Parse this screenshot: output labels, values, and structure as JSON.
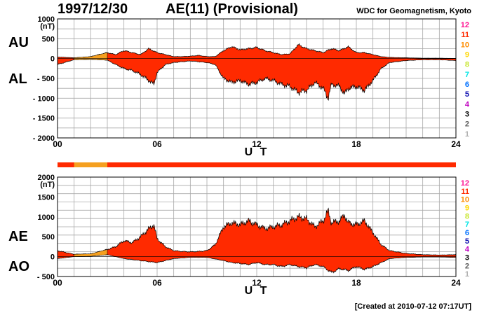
{
  "header": {
    "date": "1997/12/30",
    "title": "AE(11) (Provisional)",
    "source": "WDC for Geomagnetism, Kyoto"
  },
  "footer": {
    "created": "[Created at 2010-07-12 07:17UT]"
  },
  "colors": {
    "fill_main": "#ff2a00",
    "fill_partial": "#f5a020",
    "bar_main": "#ff2a00",
    "bar_partial": "#f5a020"
  },
  "station_scale": {
    "labels": [
      "12",
      "11",
      "10",
      "9",
      "8",
      "7",
      "6",
      "5",
      "4",
      "3",
      "2",
      "1"
    ],
    "colors": [
      "#ff1493",
      "#ff2a00",
      "#ff8c00",
      "#ffd700",
      "#c8e632",
      "#00e5e5",
      "#0070ff",
      "#1010b0",
      "#c000c0",
      "#000000",
      "#606060",
      "#b0b0b0"
    ]
  },
  "chart_data": [
    {
      "type": "area",
      "name": "AU/AL panel",
      "series_labels": [
        "AU",
        "AL"
      ],
      "y_unit": "(nT)",
      "x_label": "U T",
      "x_ticks": [
        "00",
        "06",
        "12",
        "18",
        "24"
      ],
      "xlim": [
        0,
        24
      ],
      "ylim": [
        -2000,
        1000
      ],
      "y_ticks": [
        "1000",
        "500",
        "0",
        "- 500",
        "- 1000",
        "- 1500",
        "- 2000"
      ],
      "y_tick_values": [
        1000,
        500,
        0,
        -500,
        -1000,
        -1500,
        -2000
      ],
      "grid": true,
      "partial_coverage_hours": [
        1,
        3
      ],
      "upper": {
        "name": "AU",
        "x": [
          0,
          1,
          2,
          3,
          3.5,
          4,
          4.5,
          5,
          5.5,
          6,
          6.5,
          7,
          7.5,
          8,
          8.5,
          9,
          9.5,
          10,
          10.5,
          11,
          11.5,
          12,
          12.5,
          13,
          13.5,
          14,
          14.5,
          15,
          15.5,
          16,
          16.5,
          17,
          17.5,
          18,
          18.5,
          19,
          19.5,
          20,
          21,
          22,
          23,
          24
        ],
        "y": [
          40,
          20,
          50,
          150,
          100,
          200,
          150,
          100,
          250,
          150,
          100,
          50,
          50,
          60,
          80,
          50,
          50,
          200,
          300,
          220,
          250,
          280,
          200,
          150,
          100,
          120,
          350,
          250,
          200,
          150,
          250,
          200,
          300,
          150,
          150,
          100,
          50,
          30,
          20,
          10,
          10,
          5
        ]
      },
      "lower": {
        "name": "AL",
        "x": [
          0,
          1,
          2,
          3,
          3.5,
          4,
          4.5,
          5,
          5.5,
          5.8,
          6,
          6.5,
          7,
          7.5,
          8,
          8.5,
          9,
          9.5,
          10,
          10.5,
          11,
          11.5,
          12,
          12.5,
          13,
          13.5,
          14,
          14.5,
          15,
          15.5,
          16,
          16.3,
          16.5,
          17,
          17.3,
          17.5,
          18,
          18.5,
          19,
          19.5,
          20,
          21,
          22,
          23,
          24
        ],
        "y": [
          -150,
          -30,
          -20,
          -40,
          -150,
          -250,
          -300,
          -400,
          -550,
          -650,
          -350,
          -150,
          -100,
          -80,
          -60,
          -80,
          -100,
          -150,
          -500,
          -600,
          -550,
          -650,
          -600,
          -500,
          -550,
          -650,
          -700,
          -850,
          -800,
          -600,
          -750,
          -1000,
          -650,
          -700,
          -900,
          -750,
          -700,
          -800,
          -550,
          -250,
          -100,
          -50,
          -30,
          -30,
          -50
        ]
      }
    },
    {
      "type": "area",
      "name": "AE/AO panel",
      "series_labels": [
        "AE",
        "AO"
      ],
      "y_unit": "(nT)",
      "x_label": "U T",
      "x_ticks": [
        "00",
        "06",
        "12",
        "18",
        "24"
      ],
      "xlim": [
        0,
        24
      ],
      "ylim": [
        -500,
        2000
      ],
      "y_ticks": [
        "2000",
        "1500",
        "1000",
        "500",
        "0",
        "- 500"
      ],
      "y_tick_values": [
        2000,
        1500,
        1000,
        500,
        0,
        -500
      ],
      "grid": true,
      "partial_coverage_hours": [
        1,
        3
      ],
      "upper": {
        "name": "AE",
        "x": [
          0,
          1,
          2,
          3,
          3.5,
          4,
          4.5,
          5,
          5.5,
          5.8,
          6,
          6.5,
          7,
          7.5,
          8,
          8.5,
          9,
          9.5,
          10,
          10.5,
          11,
          11.5,
          12,
          12.5,
          13,
          13.5,
          14,
          14.5,
          15,
          15.5,
          16,
          16.3,
          16.5,
          17,
          17.3,
          17.5,
          18,
          18.5,
          19,
          19.5,
          20,
          21,
          22,
          23,
          24
        ],
        "y": [
          150,
          60,
          70,
          180,
          250,
          400,
          350,
          500,
          700,
          800,
          450,
          250,
          150,
          130,
          120,
          130,
          150,
          300,
          750,
          850,
          800,
          900,
          800,
          700,
          750,
          800,
          900,
          1000,
          950,
          750,
          900,
          1150,
          850,
          900,
          1050,
          850,
          800,
          900,
          600,
          300,
          150,
          80,
          50,
          40,
          50
        ]
      },
      "lower": {
        "name": "AO",
        "x": [
          0,
          1,
          2,
          3,
          4,
          5,
          6,
          7,
          8,
          9,
          10,
          10.5,
          11,
          11.5,
          12,
          12.5,
          13,
          13.5,
          14,
          14.5,
          15,
          15.5,
          16,
          16.5,
          17,
          17.5,
          18,
          18.5,
          19,
          19.5,
          20,
          21,
          22,
          23,
          24
        ],
        "y": [
          -50,
          0,
          10,
          50,
          -50,
          -100,
          -150,
          -50,
          -20,
          -20,
          -100,
          -150,
          -170,
          -200,
          -150,
          -200,
          -200,
          -250,
          -200,
          -250,
          -280,
          -200,
          -250,
          -400,
          -300,
          -350,
          -250,
          -320,
          -250,
          -150,
          -50,
          -20,
          -10,
          -10,
          -20
        ]
      }
    }
  ]
}
